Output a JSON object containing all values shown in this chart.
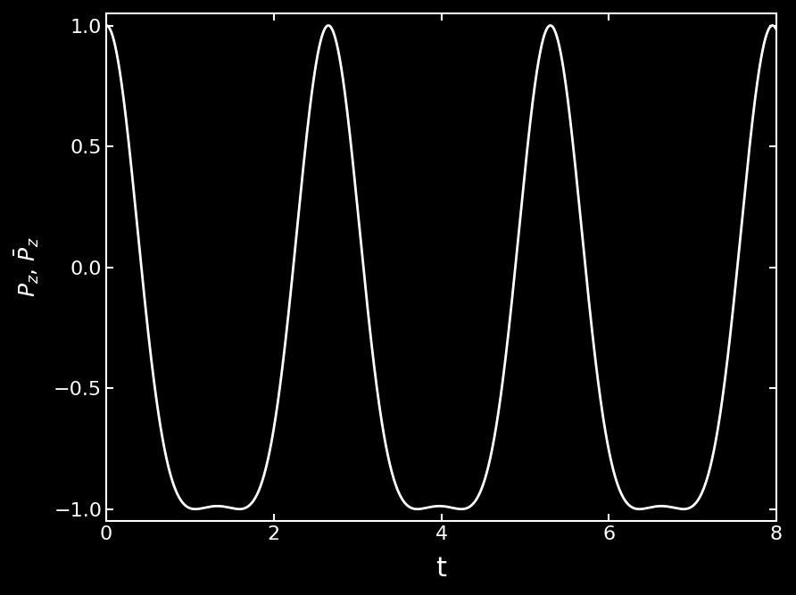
{
  "background_color": "#000000",
  "line_color": "#ffffff",
  "line_width": 2.0,
  "xlabel": "t",
  "xlim": [
    0,
    8
  ],
  "ylim": [
    -1.05,
    1.05
  ],
  "xticks": [
    0,
    2,
    4,
    6,
    8
  ],
  "yticks": [
    -1,
    -0.5,
    0,
    0.5,
    1
  ],
  "xlabel_fontsize": 22,
  "ylabel_fontsize": 18,
  "tick_fontsize": 16,
  "omega": 1.185,
  "amplitude": 3.3,
  "figsize": [
    8.92,
    6.67
  ],
  "dpi": 100
}
